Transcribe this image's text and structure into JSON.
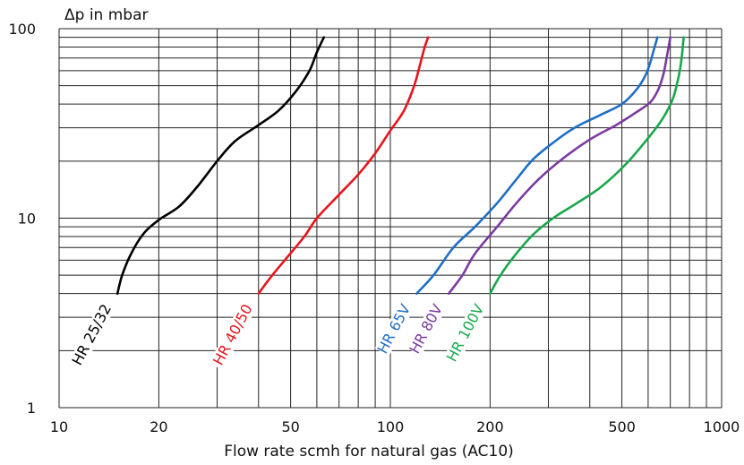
{
  "chart_data": {
    "type": "line",
    "x_scale": "log",
    "y_scale": "log",
    "xlim": [
      10,
      1000
    ],
    "ylim": [
      1,
      100
    ],
    "xlabel": "Flow rate scmh for natural gas (AC10)",
    "ylabel": "Δp in mbar",
    "xticks": [
      {
        "value": 10,
        "label": "10"
      },
      {
        "value": 20,
        "label": "20"
      },
      {
        "value": 50,
        "label": "50"
      },
      {
        "value": 100,
        "label": "100"
      },
      {
        "value": 200,
        "label": "200"
      },
      {
        "value": 500,
        "label": "500"
      },
      {
        "value": 1000,
        "label": "1000"
      }
    ],
    "yticks": [
      {
        "value": 1,
        "label": "1"
      },
      {
        "value": 10,
        "label": "10"
      },
      {
        "value": 100,
        "label": "100"
      }
    ],
    "grid": true,
    "series": [
      {
        "name": "HR 25/32",
        "color": "#000000",
        "points": [
          [
            15,
            4
          ],
          [
            15.5,
            5
          ],
          [
            16.5,
            6.5
          ],
          [
            18,
            8.3
          ],
          [
            20,
            9.8
          ],
          [
            23,
            11.5
          ],
          [
            26,
            14.5
          ],
          [
            30,
            20
          ],
          [
            34,
            25.5
          ],
          [
            40,
            31
          ],
          [
            46,
            37
          ],
          [
            52,
            47
          ],
          [
            57,
            60
          ],
          [
            60,
            75
          ],
          [
            63,
            90
          ]
        ]
      },
      {
        "name": "HR 40/50",
        "color": "#e8141c",
        "points": [
          [
            40,
            4
          ],
          [
            44,
            5
          ],
          [
            48,
            6
          ],
          [
            55,
            8
          ],
          [
            60,
            10
          ],
          [
            70,
            13.3
          ],
          [
            80,
            17
          ],
          [
            90,
            22
          ],
          [
            100,
            29
          ],
          [
            110,
            37
          ],
          [
            118,
            50
          ],
          [
            123,
            65
          ],
          [
            127,
            80
          ],
          [
            130,
            90
          ]
        ]
      },
      {
        "name": "HR 65V",
        "color": "#1f6fc4",
        "points": [
          [
            120,
            4
          ],
          [
            135,
            5
          ],
          [
            155,
            7
          ],
          [
            180,
            9
          ],
          [
            210,
            12
          ],
          [
            240,
            16
          ],
          [
            270,
            20.5
          ],
          [
            310,
            25
          ],
          [
            360,
            30
          ],
          [
            430,
            35
          ],
          [
            500,
            40
          ],
          [
            555,
            48
          ],
          [
            590,
            57
          ],
          [
            610,
            67
          ],
          [
            625,
            78
          ],
          [
            640,
            90
          ]
        ]
      },
      {
        "name": "HR 80V",
        "color": "#7a3aa0",
        "points": [
          [
            150,
            4
          ],
          [
            165,
            5
          ],
          [
            180,
            6.5
          ],
          [
            210,
            9
          ],
          [
            240,
            12
          ],
          [
            280,
            16
          ],
          [
            330,
            20.5
          ],
          [
            400,
            26
          ],
          [
            480,
            31
          ],
          [
            550,
            36
          ],
          [
            610,
            41
          ],
          [
            645,
            48
          ],
          [
            668,
            58
          ],
          [
            682,
            70
          ],
          [
            692,
            80
          ],
          [
            700,
            90
          ]
        ]
      },
      {
        "name": "HR 100V",
        "color": "#18a84c",
        "points": [
          [
            200,
            4
          ],
          [
            215,
            5
          ],
          [
            240,
            6.5
          ],
          [
            270,
            8.2
          ],
          [
            310,
            10
          ],
          [
            360,
            11.8
          ],
          [
            430,
            14.5
          ],
          [
            510,
            19
          ],
          [
            590,
            25.5
          ],
          [
            660,
            33
          ],
          [
            710,
            42
          ],
          [
            735,
            52
          ],
          [
            750,
            62
          ],
          [
            760,
            74
          ],
          [
            768,
            90
          ]
        ]
      }
    ]
  }
}
